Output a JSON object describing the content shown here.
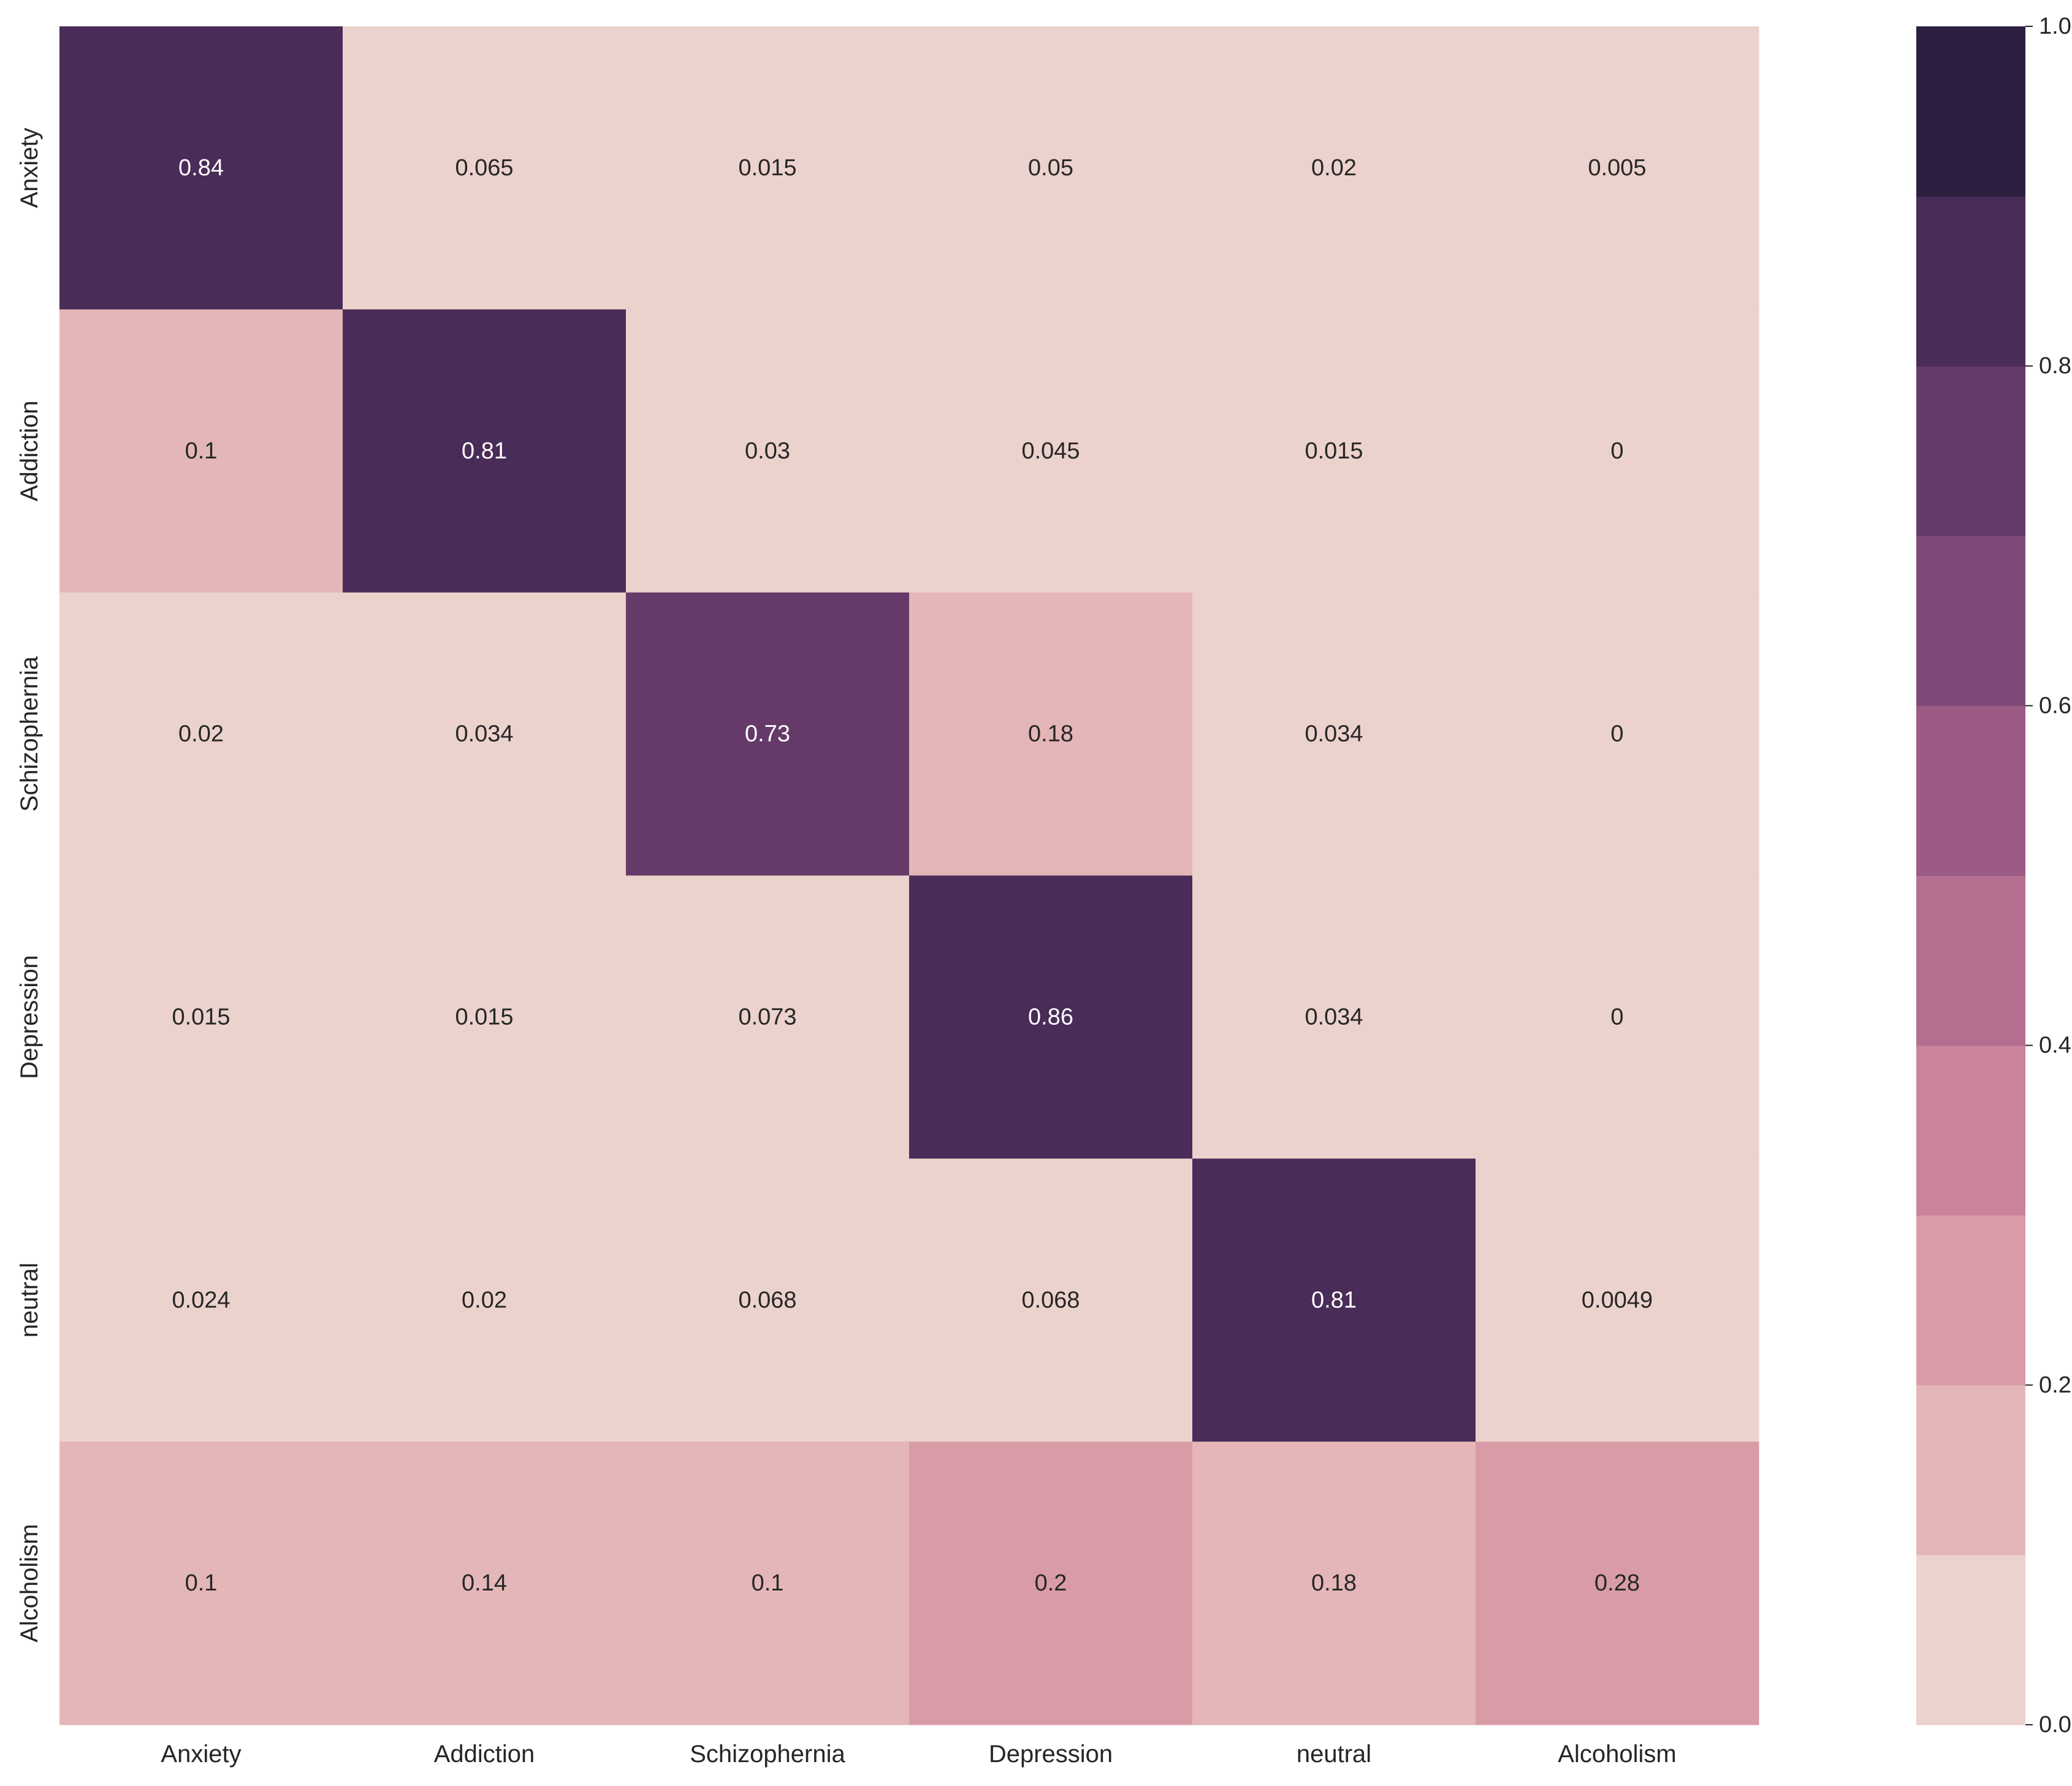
{
  "chart_data": {
    "type": "heatmap",
    "title": "",
    "xlabel": "",
    "ylabel": "",
    "x_categories": [
      "Anxiety",
      "Addiction",
      "Schizophernia",
      "Depression",
      "neutral",
      "Alcoholism"
    ],
    "y_categories": [
      "Anxiety",
      "Addiction",
      "Schizophernia",
      "Depression",
      "neutral",
      "Alcoholism"
    ],
    "values": [
      [
        0.84,
        0.065,
        0.015,
        0.05,
        0.02,
        0.005
      ],
      [
        0.1,
        0.81,
        0.03,
        0.045,
        0.015,
        0
      ],
      [
        0.02,
        0.034,
        0.73,
        0.18,
        0.034,
        0
      ],
      [
        0.015,
        0.015,
        0.073,
        0.86,
        0.034,
        0
      ],
      [
        0.024,
        0.02,
        0.068,
        0.068,
        0.81,
        0.0049
      ],
      [
        0.1,
        0.14,
        0.1,
        0.2,
        0.18,
        0.28
      ]
    ],
    "value_labels": [
      [
        "0.84",
        "0.065",
        "0.015",
        "0.05",
        "0.02",
        "0.005"
      ],
      [
        "0.1",
        "0.81",
        "0.03",
        "0.045",
        "0.015",
        "0"
      ],
      [
        "0.02",
        "0.034",
        "0.73",
        "0.18",
        "0.034",
        "0"
      ],
      [
        "0.015",
        "0.015",
        "0.073",
        "0.86",
        "0.034",
        "0"
      ],
      [
        "0.024",
        "0.02",
        "0.068",
        "0.068",
        "0.81",
        "0.0049"
      ],
      [
        "0.1",
        "0.14",
        "0.1",
        "0.2",
        "0.18",
        "0.28"
      ]
    ],
    "colorbar": {
      "range": [
        0,
        1
      ],
      "ticks": [
        "0.0",
        "0.2",
        "0.4",
        "0.6",
        "0.8",
        "1.0"
      ],
      "bins": 10,
      "colors": [
        "#ecd2cc",
        "#e4b6b8",
        "#d99ca7",
        "#ca839a",
        "#b46e90",
        "#9b5b85",
        "#804a78",
        "#653a69",
        "#492c57",
        "#2d1f3f"
      ]
    },
    "annotation_colors": {
      "dark": "#262626",
      "light": "#ffffff"
    },
    "grid": false
  }
}
